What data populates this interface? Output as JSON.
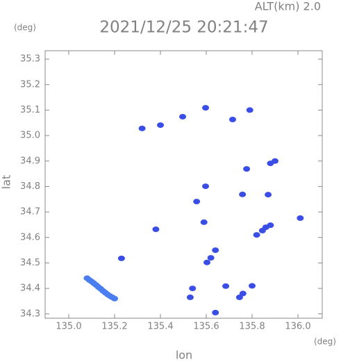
{
  "chart_data": {
    "type": "scatter",
    "title": "2021/12/25 20:21:47",
    "subtitle": "ALT(km) 2.0",
    "x_label": "lon",
    "y_label": "lat",
    "x_unit": "(deg)",
    "y_unit": "(deg)",
    "xlim": [
      134.897,
      136.106
    ],
    "ylim": [
      34.283,
      35.333
    ],
    "xticks": [
      {
        "value": 135,
        "label": "135.0"
      },
      135.2,
      135.4,
      135.6,
      135.8,
      {
        "value": 136,
        "label": "136.0"
      }
    ],
    "yticks": [
      34.3,
      34.4,
      34.5,
      34.6,
      34.7,
      34.8,
      34.9,
      {
        "value": 35,
        "label": "35.0"
      },
      35.1,
      35.2,
      35.3
    ],
    "grid": false,
    "series": [
      {
        "color": "#4a7ef0",
        "x": [
          135.08,
          135.09,
          135.1,
          135.11,
          135.12,
          135.13,
          135.14,
          135.15,
          135.16,
          135.17,
          135.18,
          135.19,
          135.2
        ],
        "y": [
          34.44,
          34.433,
          34.427,
          34.42,
          34.413,
          34.405,
          34.398,
          34.39,
          34.383,
          34.376,
          34.37,
          34.365,
          34.36
        ]
      },
      {
        "color": "#3a4ee6",
        "x": [
          135.23,
          135.32,
          135.4,
          135.497,
          135.597,
          135.715,
          135.79,
          135.776,
          135.88,
          135.9,
          135.597,
          135.758,
          135.87,
          135.558,
          135.845,
          135.88,
          135.82,
          135.86,
          136.01,
          135.603,
          135.62,
          135.64,
          135.54,
          135.53,
          135.685,
          135.745,
          135.8,
          135.76,
          135.64,
          135.38,
          135.59
        ],
        "y": [
          34.518,
          35.028,
          35.041,
          35.074,
          35.109,
          35.063,
          35.1,
          34.869,
          34.891,
          34.9,
          34.801,
          34.769,
          34.768,
          34.741,
          34.627,
          34.648,
          34.61,
          34.64,
          34.676,
          34.502,
          34.52,
          34.55,
          34.4,
          34.365,
          34.409,
          34.365,
          34.41,
          34.38,
          34.305,
          34.632,
          34.66
        ]
      }
    ]
  }
}
